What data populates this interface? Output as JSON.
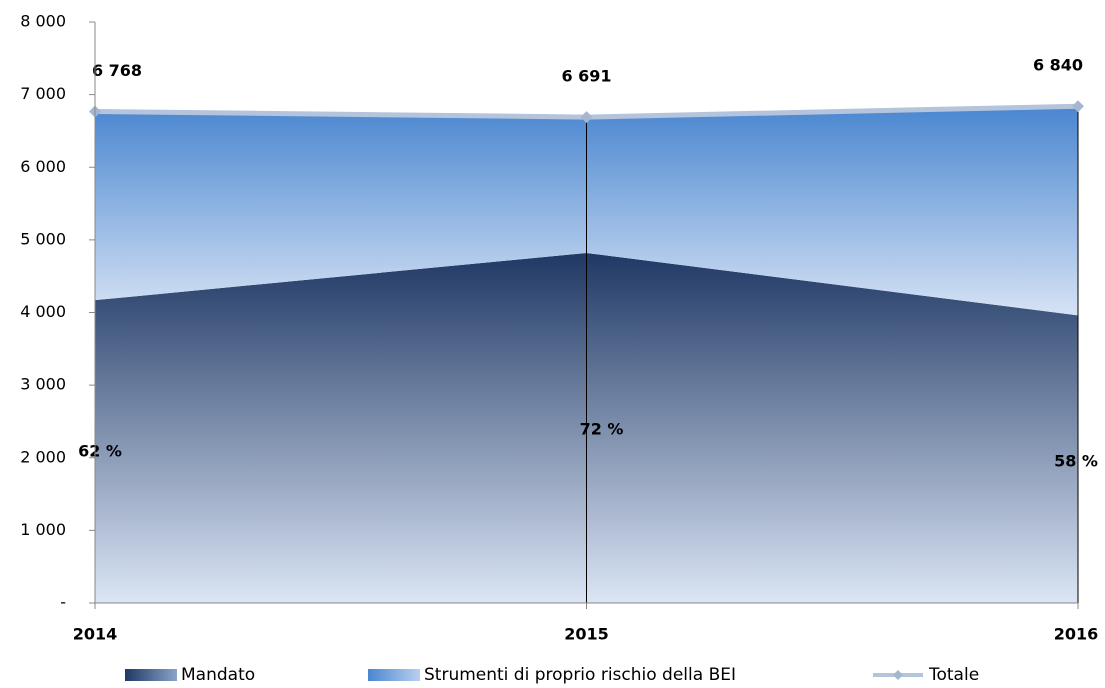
{
  "chart_data": {
    "type": "stacked-area",
    "categories": [
      "2014",
      "2015",
      "2016"
    ],
    "series": [
      {
        "name": "Mandato",
        "color": "#1f3864",
        "values": [
          4170,
          4820,
          3960
        ]
      },
      {
        "name": "Strumenti di proprio rischio della BEI",
        "color": "#4a86d0",
        "values": [
          2598,
          1871,
          2880
        ]
      },
      {
        "name": "Totale",
        "type": "line",
        "color": "#b4c4dc",
        "values": [
          6768,
          6691,
          6840
        ],
        "value_labels": [
          "6 768",
          "6 691",
          "6 840"
        ]
      }
    ],
    "annotations": [
      "62 %",
      "72 %",
      "58 %"
    ],
    "ylim": [
      0,
      8000
    ],
    "yticks": [
      {
        "value": 0,
        "label": "-"
      },
      {
        "value": 1000,
        "label": "1 000"
      },
      {
        "value": 2000,
        "label": "2 000"
      },
      {
        "value": 3000,
        "label": "3 000"
      },
      {
        "value": 4000,
        "label": "4 000"
      },
      {
        "value": 5000,
        "label": "5 000"
      },
      {
        "value": 6000,
        "label": "6 000"
      },
      {
        "value": 7000,
        "label": "7 000"
      },
      {
        "value": 8000,
        "label": "8 000"
      }
    ],
    "legend": "bottom"
  }
}
